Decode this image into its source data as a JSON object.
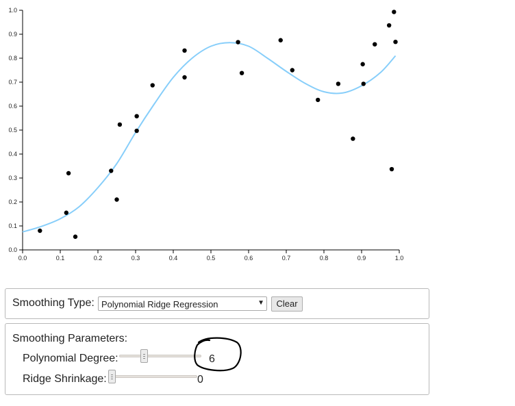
{
  "chart_data": {
    "type": "scatter",
    "title": "",
    "xlabel": "",
    "ylabel": "",
    "xlim": [
      0,
      1
    ],
    "ylim": [
      0,
      1
    ],
    "x_ticks": [
      "0.0",
      "0.1",
      "0.2",
      "0.3",
      "0.4",
      "0.5",
      "0.6",
      "0.7",
      "0.8",
      "0.9",
      "1.0"
    ],
    "y_ticks": [
      "0.0",
      "0.1",
      "0.2",
      "0.3",
      "0.4",
      "0.5",
      "0.6",
      "0.7",
      "0.8",
      "0.9",
      "1.0"
    ],
    "grid": false,
    "colors": {
      "points": "#000000",
      "curve": "#87cefa"
    },
    "points": [
      [
        0.046,
        0.08
      ],
      [
        0.116,
        0.155
      ],
      [
        0.122,
        0.32
      ],
      [
        0.14,
        0.055
      ],
      [
        0.235,
        0.33
      ],
      [
        0.25,
        0.21
      ],
      [
        0.258,
        0.523
      ],
      [
        0.303,
        0.558
      ],
      [
        0.303,
        0.497
      ],
      [
        0.345,
        0.687
      ],
      [
        0.43,
        0.832
      ],
      [
        0.43,
        0.72
      ],
      [
        0.572,
        0.867
      ],
      [
        0.582,
        0.738
      ],
      [
        0.685,
        0.875
      ],
      [
        0.716,
        0.75
      ],
      [
        0.784,
        0.626
      ],
      [
        0.838,
        0.693
      ],
      [
        0.877,
        0.464
      ],
      [
        0.903,
        0.775
      ],
      [
        0.905,
        0.693
      ],
      [
        0.935,
        0.858
      ],
      [
        0.973,
        0.937
      ],
      [
        0.98,
        0.337
      ],
      [
        0.986,
        0.993
      ],
      [
        0.99,
        0.868
      ]
    ],
    "fit_curve": [
      [
        0.0,
        0.075
      ],
      [
        0.05,
        0.098
      ],
      [
        0.1,
        0.13
      ],
      [
        0.15,
        0.18
      ],
      [
        0.2,
        0.26
      ],
      [
        0.25,
        0.36
      ],
      [
        0.3,
        0.49
      ],
      [
        0.35,
        0.61
      ],
      [
        0.4,
        0.72
      ],
      [
        0.45,
        0.8
      ],
      [
        0.5,
        0.85
      ],
      [
        0.55,
        0.865
      ],
      [
        0.6,
        0.85
      ],
      [
        0.65,
        0.8
      ],
      [
        0.7,
        0.745
      ],
      [
        0.75,
        0.695
      ],
      [
        0.8,
        0.66
      ],
      [
        0.85,
        0.655
      ],
      [
        0.9,
        0.685
      ],
      [
        0.95,
        0.74
      ],
      [
        0.99,
        0.81
      ]
    ]
  },
  "controls": {
    "smoothing_type_label": "Smoothing Type:",
    "smoothing_type_value": "Polynomial Ridge Regression",
    "clear_label": "Clear",
    "params_label": "Smoothing Parameters:",
    "poly_degree_label": "Polynomial Degree:",
    "poly_degree_value": "6",
    "poly_degree_fraction": 0.28,
    "ridge_label": "Ridge Shrinkage:",
    "ridge_value": "0",
    "ridge_fraction": 0.0
  }
}
